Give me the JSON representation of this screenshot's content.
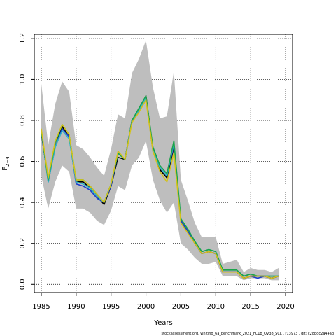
{
  "chart_data": {
    "type": "line",
    "xlabel": "Years",
    "ylabel": "F",
    "ylabel_sub": "2−4",
    "xlim": [
      1984,
      2021
    ],
    "ylim": [
      -0.04,
      1.22
    ],
    "x_ticks": [
      1985,
      1990,
      1995,
      2000,
      2005,
      2010,
      2015,
      2020
    ],
    "y_ticks": [
      0.0,
      0.2,
      0.4,
      0.6,
      0.8,
      1.0,
      1.2
    ],
    "y_tick_labels": [
      "0.0",
      "0.2",
      "0.4",
      "0.6",
      "0.8",
      "1.0",
      "1.2"
    ],
    "grid": true,
    "band": {
      "color": "#bebebe",
      "x": [
        1985,
        1986,
        1987,
        1988,
        1989,
        1990,
        1991,
        1992,
        1993,
        1994,
        1995,
        1996,
        1997,
        1998,
        1999,
        2000,
        2001,
        2002,
        2003,
        2004,
        2005,
        2006,
        2007,
        2008,
        2009,
        2010,
        2011,
        2012,
        2013,
        2014,
        2015,
        2016,
        2017,
        2018,
        2019
      ],
      "upper": [
        0.98,
        0.68,
        0.88,
        0.99,
        0.94,
        0.68,
        0.66,
        0.62,
        0.57,
        0.53,
        0.66,
        0.83,
        0.81,
        1.03,
        1.1,
        1.19,
        0.96,
        0.81,
        0.82,
        1.04,
        0.51,
        0.41,
        0.3,
        0.23,
        0.23,
        0.23,
        0.1,
        0.11,
        0.12,
        0.06,
        0.08,
        0.07,
        0.07,
        0.06,
        0.08
      ],
      "lower": [
        0.53,
        0.37,
        0.5,
        0.58,
        0.55,
        0.37,
        0.37,
        0.35,
        0.31,
        0.29,
        0.36,
        0.48,
        0.46,
        0.58,
        0.62,
        0.7,
        0.51,
        0.41,
        0.35,
        0.4,
        0.2,
        0.17,
        0.13,
        0.1,
        0.1,
        0.11,
        0.04,
        0.04,
        0.04,
        0.02,
        0.03,
        0.03,
        0.03,
        0.02,
        0.02
      ]
    },
    "series": [
      {
        "color": "#000000",
        "x": [
          1985,
          1986,
          1987,
          1988,
          1989,
          1990,
          1991,
          1992,
          1993,
          1994,
          1995,
          1996,
          1997,
          1998,
          1999,
          2000,
          2001,
          2002,
          2003,
          2004,
          2005,
          2006,
          2007,
          2008,
          2009,
          2010,
          2011,
          2012,
          2013,
          2014,
          2015,
          2016,
          2017,
          2018,
          2019
        ],
        "values": [
          0.74,
          0.51,
          0.69,
          0.77,
          0.72,
          0.5,
          0.5,
          0.47,
          0.43,
          0.39,
          0.48,
          0.62,
          0.61,
          0.8,
          0.85,
          0.92,
          0.66,
          0.56,
          0.52,
          0.67,
          0.31,
          0.26,
          0.2,
          0.15,
          0.16,
          0.15,
          0.06,
          0.06,
          0.06,
          0.03,
          0.04,
          0.04,
          0.04,
          0.03,
          0.04
        ]
      },
      {
        "color": "#1a3ccf",
        "x": [
          1985,
          1986,
          1987,
          1988,
          1989,
          1990,
          1991,
          1992,
          1993,
          1994,
          1995,
          1996,
          1997,
          1998,
          1999,
          2000,
          2001,
          2002,
          2003,
          2004,
          2005,
          2006,
          2007,
          2008,
          2009,
          2010,
          2011,
          2012,
          2013,
          2014,
          2015,
          2016,
          2017,
          2018,
          2019
        ],
        "values": [
          0.75,
          0.5,
          0.67,
          0.76,
          0.72,
          0.49,
          0.48,
          0.46,
          0.42,
          0.4,
          0.48,
          0.64,
          0.61,
          0.8,
          0.85,
          0.91,
          0.65,
          0.57,
          0.53,
          0.68,
          0.31,
          0.26,
          0.2,
          0.15,
          0.16,
          0.15,
          0.06,
          0.06,
          0.06,
          0.03,
          0.04,
          0.03,
          0.04,
          0.03,
          0.04
        ]
      },
      {
        "color": "#2fb7c7",
        "x": [
          1985,
          1986,
          1987,
          1988,
          1989,
          1990,
          1991,
          1992,
          1993,
          1994,
          1995,
          1996,
          1997,
          1998,
          1999,
          2000,
          2001,
          2002,
          2003,
          2004,
          2005,
          2006,
          2007,
          2008,
          2009,
          2010,
          2011,
          2012,
          2013,
          2014,
          2015,
          2016,
          2017,
          2018,
          2019
        ],
        "values": [
          0.75,
          0.5,
          0.67,
          0.75,
          0.71,
          0.5,
          0.49,
          0.47,
          0.43,
          0.4,
          0.49,
          0.64,
          0.61,
          0.8,
          0.85,
          0.91,
          0.66,
          0.57,
          0.53,
          0.69,
          0.32,
          0.27,
          0.21,
          0.16,
          0.17,
          0.16,
          0.07,
          0.07,
          0.07,
          0.04,
          0.05,
          0.04,
          0.04,
          0.04,
          0.04
        ]
      },
      {
        "color": "#5a1c7a",
        "x": [
          2014,
          2015,
          2016,
          2017,
          2018,
          2019
        ],
        "values": [
          0.03,
          0.04,
          0.04,
          0.04,
          0.03,
          0.04
        ]
      },
      {
        "color": "#1aa34a",
        "x": [
          1985,
          1986,
          1987,
          1988,
          1989,
          1990,
          1991,
          1992,
          1993,
          1994,
          1995,
          1996,
          1997,
          1998,
          1999,
          2000,
          2001,
          2002,
          2003,
          2004,
          2005,
          2006,
          2007,
          2008,
          2009,
          2010,
          2011,
          2012,
          2013,
          2014,
          2015,
          2016,
          2017,
          2018,
          2019
        ],
        "values": [
          0.75,
          0.51,
          0.69,
          0.78,
          0.73,
          0.51,
          0.51,
          0.48,
          0.44,
          0.4,
          0.49,
          0.64,
          0.61,
          0.8,
          0.86,
          0.92,
          0.67,
          0.58,
          0.54,
          0.7,
          0.32,
          0.27,
          0.21,
          0.16,
          0.17,
          0.16,
          0.07,
          0.07,
          0.07,
          0.04,
          0.05,
          0.04,
          0.04,
          0.04,
          0.04
        ]
      },
      {
        "color": "#d4c21a",
        "x": [
          1985,
          1986,
          1987,
          1988,
          1989,
          1990,
          1991,
          1992,
          1993,
          1994,
          1995,
          1996,
          1997,
          1998,
          1999,
          2000,
          2001,
          2002,
          2003,
          2004,
          2005,
          2006,
          2007,
          2008,
          2009,
          2010,
          2011,
          2012,
          2013,
          2014,
          2015,
          2016,
          2017,
          2018,
          2019
        ],
        "values": [
          0.76,
          0.52,
          0.7,
          0.78,
          0.73,
          0.51,
          0.51,
          0.48,
          0.44,
          0.4,
          0.49,
          0.65,
          0.61,
          0.79,
          0.84,
          0.9,
          0.65,
          0.55,
          0.5,
          0.64,
          0.3,
          0.25,
          0.2,
          0.15,
          0.16,
          0.15,
          0.06,
          0.06,
          0.06,
          0.03,
          0.04,
          0.04,
          0.04,
          0.03,
          0.04
        ]
      }
    ]
  },
  "footer_text": "stockassessment.org,  whiting_6a_benchmark_2021_FC1b_OV38_SCL , r13973 ,  git:  c28bdc2a44ad"
}
